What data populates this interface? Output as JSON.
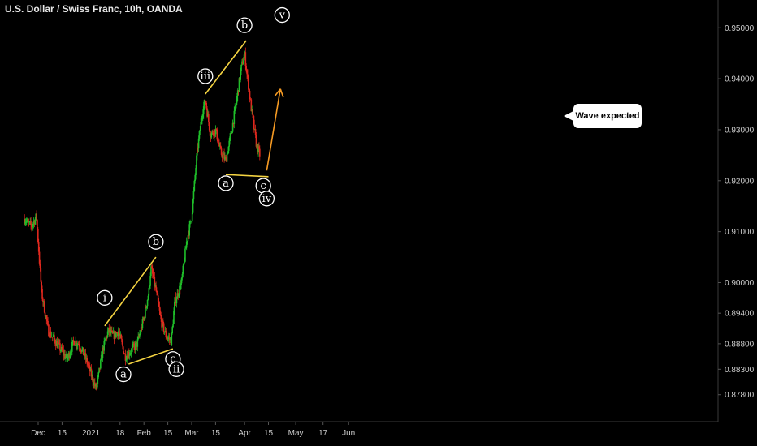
{
  "header": {
    "title": "U.S. Dollar / Swiss Franc, 10h, OANDA"
  },
  "callout": {
    "text": "Wave expected"
  },
  "colors": {
    "up": "#1fbf2a",
    "down": "#e0281e",
    "trendline": "#f5d442",
    "arrow": "#f59a23",
    "label": "#ffffff",
    "background": "#000000"
  },
  "chart_data": {
    "type": "candlestick",
    "title": "U.S. Dollar / Swiss Franc, 10h, OANDA",
    "ylim": [
      0.8735,
      0.9545
    ],
    "y_ticks": [
      "0.95000",
      "0.94000",
      "0.93000",
      "0.92000",
      "0.91000",
      "0.90000",
      "0.89400",
      "0.88800",
      "0.88300",
      "0.87800"
    ],
    "x_ticks": [
      "Dec",
      "15",
      "2021",
      "18",
      "Feb",
      "15",
      "Mar",
      "15",
      "Apr",
      "15",
      "May",
      "17",
      "Jun"
    ],
    "price_path": [
      [
        "2020-11-23",
        0.9125
      ],
      [
        "2020-11-27",
        0.911
      ],
      [
        "2020-11-30",
        0.913
      ],
      [
        "2020-12-03",
        0.898
      ],
      [
        "2020-12-07",
        0.8905
      ],
      [
        "2020-12-11",
        0.8885
      ],
      [
        "2020-12-15",
        0.8865
      ],
      [
        "2020-12-18",
        0.885
      ],
      [
        "2020-12-22",
        0.8885
      ],
      [
        "2020-12-25",
        0.888
      ],
      [
        "2020-12-29",
        0.885
      ],
      [
        "2021-01-01",
        0.882
      ],
      [
        "2021-01-04",
        0.879
      ],
      [
        "2021-01-06",
        0.883
      ],
      [
        "2021-01-08",
        0.887
      ],
      [
        "2021-01-11",
        0.8905
      ],
      [
        "2021-01-14",
        0.8895
      ],
      [
        "2021-01-17",
        0.8905
      ],
      [
        "2021-01-21",
        0.8855
      ],
      [
        "2021-01-24",
        0.8865
      ],
      [
        "2021-01-28",
        0.888
      ],
      [
        "2021-02-01",
        0.893
      ],
      [
        "2021-02-04",
        0.8985
      ],
      [
        "2021-02-05",
        0.903
      ],
      [
        "2021-02-08",
        0.8985
      ],
      [
        "2021-02-11",
        0.8925
      ],
      [
        "2021-02-14",
        0.8895
      ],
      [
        "2021-02-17",
        0.8885
      ],
      [
        "2021-02-19",
        0.896
      ],
      [
        "2021-02-23",
        0.9
      ],
      [
        "2021-02-26",
        0.908
      ],
      [
        "2021-03-01",
        0.913
      ],
      [
        "2021-03-04",
        0.925
      ],
      [
        "2021-03-07",
        0.933
      ],
      [
        "2021-03-09",
        0.936
      ],
      [
        "2021-03-12",
        0.929
      ],
      [
        "2021-03-15",
        0.93
      ],
      [
        "2021-03-18",
        0.9255
      ],
      [
        "2021-03-21",
        0.924
      ],
      [
        "2021-03-24",
        0.929
      ],
      [
        "2021-03-27",
        0.935
      ],
      [
        "2021-03-30",
        0.942
      ],
      [
        "2021-04-01",
        0.945
      ],
      [
        "2021-04-02",
        0.942
      ],
      [
        "2021-04-05",
        0.934
      ],
      [
        "2021-04-08",
        0.927
      ],
      [
        "2021-04-10",
        0.925
      ]
    ],
    "trendlines": [
      {
        "x1": "2021-01-09",
        "y1": 0.8915,
        "x2": "2021-02-08",
        "y2": 0.905
      },
      {
        "x1": "2021-01-23",
        "y1": 0.884,
        "x2": "2021-02-18",
        "y2": 0.887
      },
      {
        "x1": "2021-03-09",
        "y1": 0.937,
        "x2": "2021-04-02",
        "y2": 0.9475
      },
      {
        "x1": "2021-03-21",
        "y1": 0.9212,
        "x2": "2021-04-15",
        "y2": 0.9208
      }
    ],
    "projection_arrow": {
      "x1": "2021-04-14",
      "y1": 0.922,
      "x2": "2021-04-22",
      "y2": 0.938
    },
    "wave_labels": [
      {
        "text": "i",
        "x": "2021-01-09",
        "y": 0.897
      },
      {
        "text": "a",
        "x": "2021-01-20",
        "y": 0.882
      },
      {
        "text": "b",
        "x": "2021-02-08",
        "y": 0.908
      },
      {
        "text": "c",
        "x": "2021-02-18",
        "y": 0.885
      },
      {
        "text": "ii",
        "x": "2021-02-20",
        "y": 0.883
      },
      {
        "text": "iii",
        "x": "2021-03-09",
        "y": 0.9405
      },
      {
        "text": "a",
        "x": "2021-03-21",
        "y": 0.9195
      },
      {
        "text": "b",
        "x": "2021-04-01",
        "y": 0.9505
      },
      {
        "text": "c",
        "x": "2021-04-12",
        "y": 0.919
      },
      {
        "text": "iv",
        "x": "2021-04-14",
        "y": 0.9165
      },
      {
        "text": "v",
        "x": "2021-04-23",
        "y": 0.9525
      }
    ]
  }
}
